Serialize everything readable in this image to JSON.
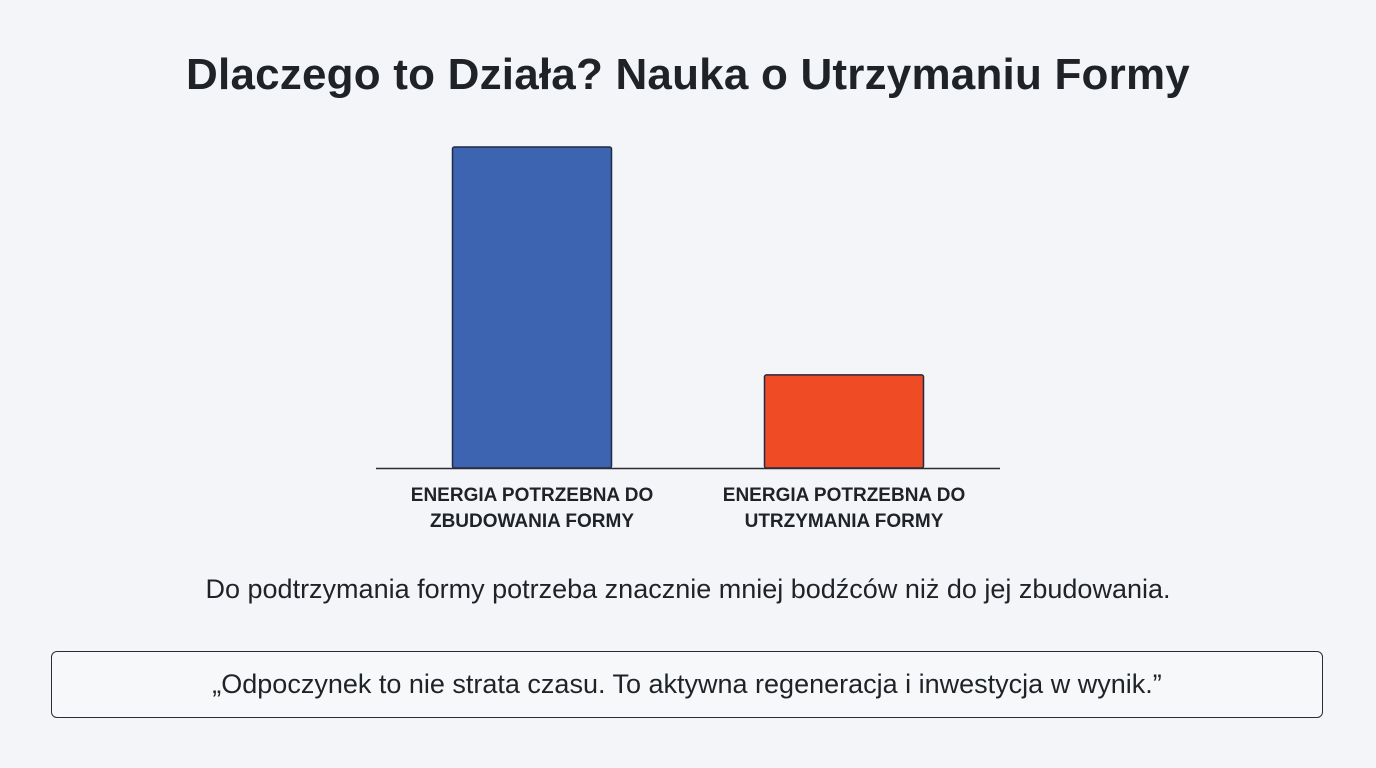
{
  "slide": {
    "title": "Dlaczego to Działa? Nauka o Utrzymaniu Formy",
    "summary": "Do podtrzymania formy potrzeba znacznie mniej bodźców niż do jej zbudowania.",
    "quote": "„Odpoczynek to nie strata czasu. To aktywna regeneracja i inwestycja w wynik.”"
  },
  "chart_data": {
    "type": "bar",
    "title": "",
    "xlabel": "",
    "ylabel": "",
    "categories": [
      [
        "ENERGIA POTRZEBNA DO",
        "ZBUDOWANIA FORMY"
      ],
      [
        "ENERGIA POTRZEBNA DO",
        "UTRZYMANIA FORMY"
      ]
    ],
    "values": [
      100,
      29
    ],
    "colors": [
      "#3d64b0",
      "#ef4b25"
    ],
    "ylim": [
      0,
      100
    ],
    "grid": false,
    "legend": "none"
  }
}
